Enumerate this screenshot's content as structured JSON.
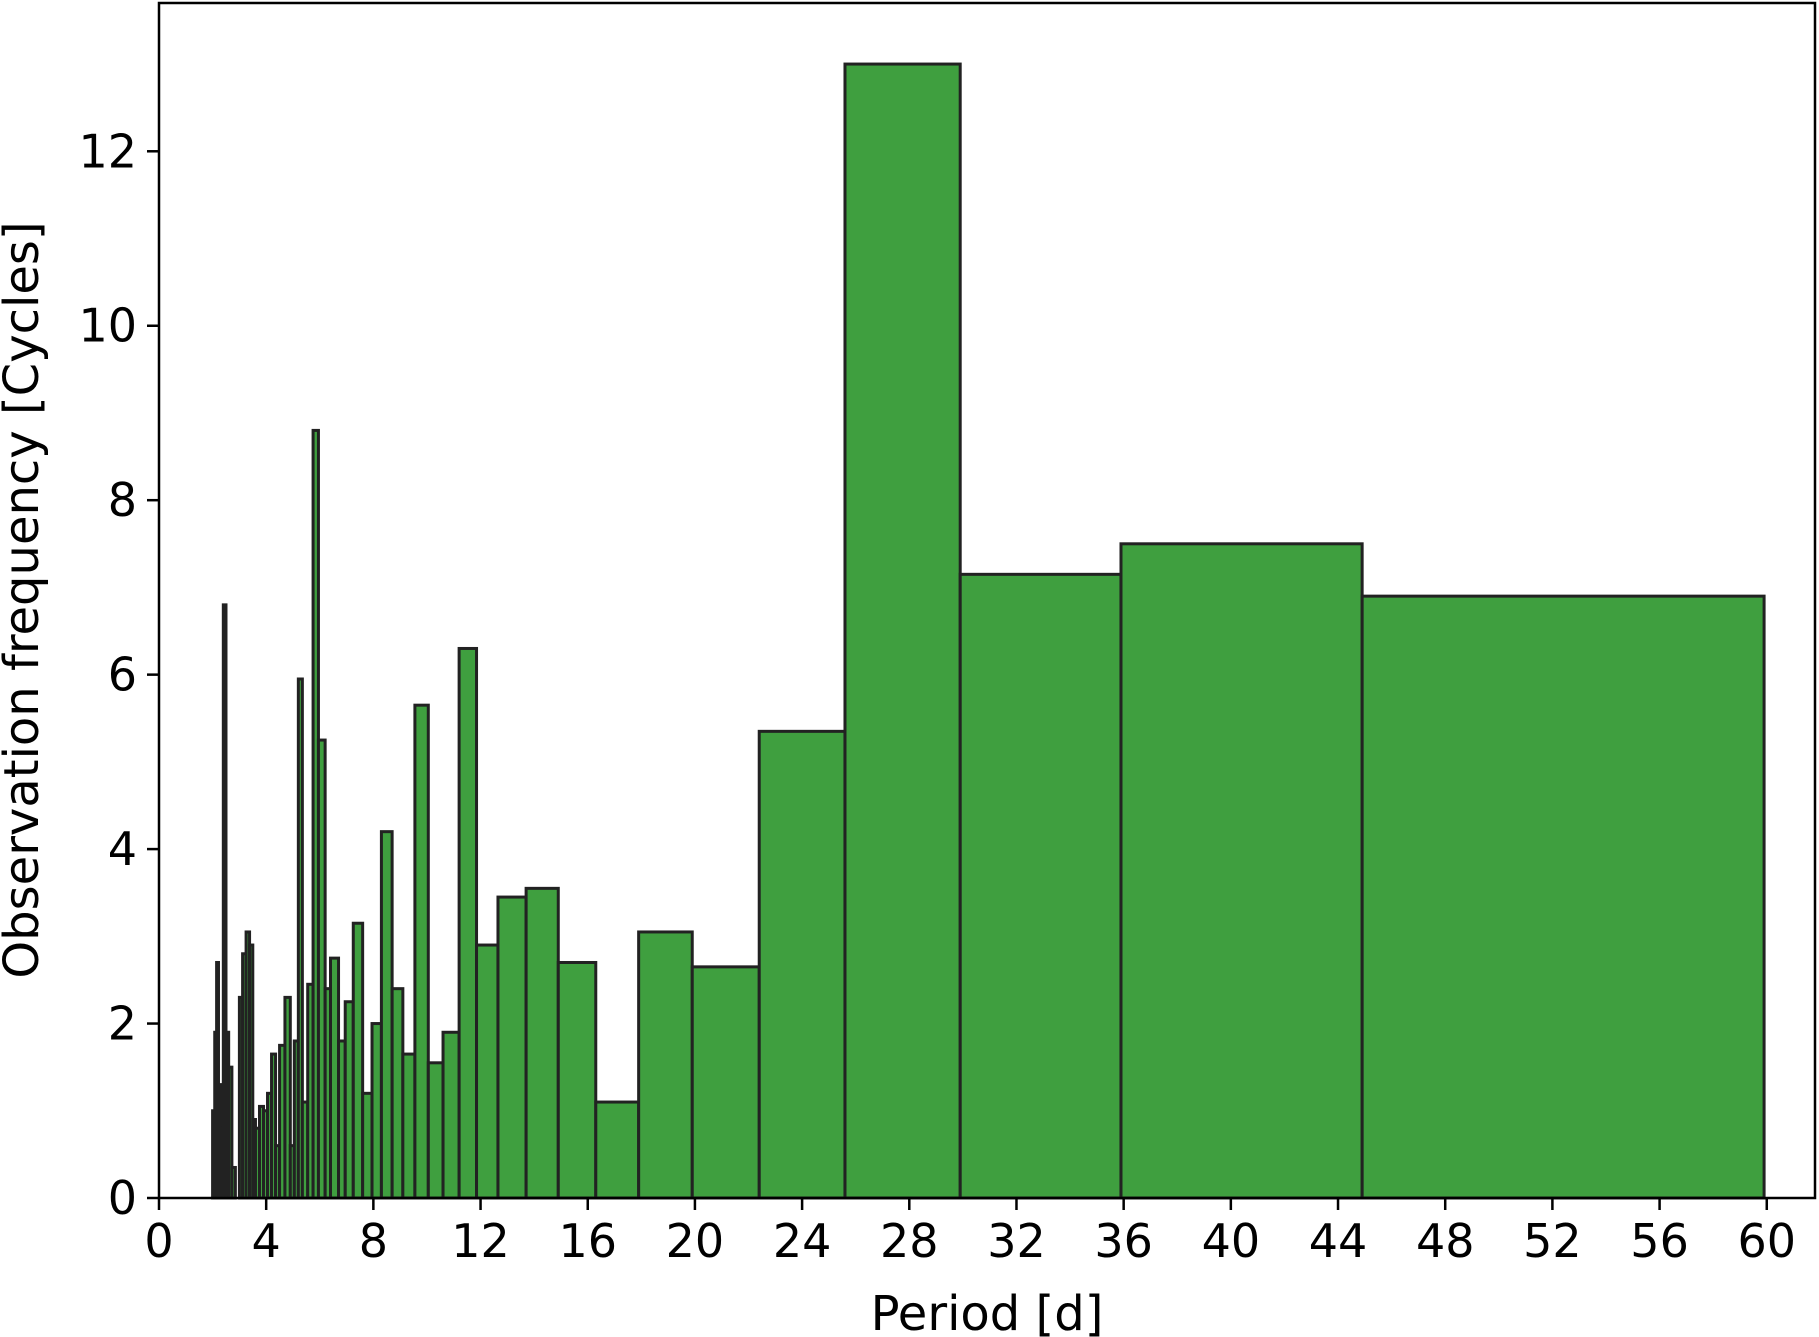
{
  "chart_data": {
    "type": "bar",
    "xlabel": "Period [d]",
    "ylabel": "Observation frequency [Cycles]",
    "xlim": [
      0,
      61.8
    ],
    "ylim": [
      0,
      13.7
    ],
    "xticks": [
      "0",
      "4",
      "8",
      "12",
      "16",
      "20",
      "24",
      "28",
      "32",
      "36",
      "40",
      "44",
      "48",
      "52",
      "56",
      "60"
    ],
    "yticks": [
      "0",
      "2",
      "4",
      "6",
      "8",
      "10",
      "12"
    ],
    "grid": false,
    "colors": {
      "fill": "#3f9f3f",
      "edge": "#222222"
    },
    "bins": [
      {
        "x0": 2.0,
        "x1": 2.08,
        "value": 1.0
      },
      {
        "x0": 2.08,
        "x1": 2.15,
        "value": 1.9
      },
      {
        "x0": 2.15,
        "x1": 2.22,
        "value": 2.7
      },
      {
        "x0": 2.22,
        "x1": 2.3,
        "value": 1.3
      },
      {
        "x0": 2.3,
        "x1": 2.4,
        "value": 0.8
      },
      {
        "x0": 2.4,
        "x1": 2.5,
        "value": 6.8
      },
      {
        "x0": 2.5,
        "x1": 2.6,
        "value": 1.9
      },
      {
        "x0": 2.6,
        "x1": 2.72,
        "value": 1.5
      },
      {
        "x0": 2.72,
        "x1": 2.85,
        "value": 0.35
      },
      {
        "x0": 3.0,
        "x1": 3.12,
        "value": 2.3
      },
      {
        "x0": 3.12,
        "x1": 3.25,
        "value": 2.8
      },
      {
        "x0": 3.25,
        "x1": 3.38,
        "value": 3.05
      },
      {
        "x0": 3.38,
        "x1": 3.5,
        "value": 2.9
      },
      {
        "x0": 3.5,
        "x1": 3.6,
        "value": 0.9
      },
      {
        "x0": 3.6,
        "x1": 3.75,
        "value": 0.8
      },
      {
        "x0": 3.75,
        "x1": 3.9,
        "value": 1.05
      },
      {
        "x0": 3.9,
        "x1": 4.05,
        "value": 1.0
      },
      {
        "x0": 4.05,
        "x1": 4.2,
        "value": 1.2
      },
      {
        "x0": 4.2,
        "x1": 4.35,
        "value": 1.65
      },
      {
        "x0": 4.35,
        "x1": 4.5,
        "value": 0.6
      },
      {
        "x0": 4.5,
        "x1": 4.7,
        "value": 1.75
      },
      {
        "x0": 4.7,
        "x1": 4.9,
        "value": 2.3
      },
      {
        "x0": 4.9,
        "x1": 5.05,
        "value": 0.6
      },
      {
        "x0": 5.05,
        "x1": 5.2,
        "value": 1.8
      },
      {
        "x0": 5.2,
        "x1": 5.35,
        "value": 5.95
      },
      {
        "x0": 5.35,
        "x1": 5.55,
        "value": 1.1
      },
      {
        "x0": 5.55,
        "x1": 5.75,
        "value": 2.45
      },
      {
        "x0": 5.75,
        "x1": 5.95,
        "value": 8.8
      },
      {
        "x0": 5.95,
        "x1": 6.2,
        "value": 5.25
      },
      {
        "x0": 6.2,
        "x1": 6.4,
        "value": 2.4
      },
      {
        "x0": 6.4,
        "x1": 6.7,
        "value": 2.75
      },
      {
        "x0": 6.7,
        "x1": 6.95,
        "value": 1.8
      },
      {
        "x0": 6.95,
        "x1": 7.25,
        "value": 2.25
      },
      {
        "x0": 7.25,
        "x1": 7.6,
        "value": 3.15
      },
      {
        "x0": 7.6,
        "x1": 7.95,
        "value": 1.2
      },
      {
        "x0": 7.95,
        "x1": 8.3,
        "value": 2.0
      },
      {
        "x0": 8.3,
        "x1": 8.7,
        "value": 4.2
      },
      {
        "x0": 8.7,
        "x1": 9.1,
        "value": 2.4
      },
      {
        "x0": 9.1,
        "x1": 9.55,
        "value": 1.65
      },
      {
        "x0": 9.55,
        "x1": 10.05,
        "value": 5.65
      },
      {
        "x0": 10.05,
        "x1": 10.6,
        "value": 1.55
      },
      {
        "x0": 10.6,
        "x1": 11.2,
        "value": 1.9
      },
      {
        "x0": 11.2,
        "x1": 11.85,
        "value": 6.3
      },
      {
        "x0": 11.85,
        "x1": 12.65,
        "value": 2.9
      },
      {
        "x0": 12.65,
        "x1": 13.7,
        "value": 3.45
      },
      {
        "x0": 13.7,
        "x1": 14.9,
        "value": 3.55
      },
      {
        "x0": 14.9,
        "x1": 16.3,
        "value": 2.7
      },
      {
        "x0": 16.3,
        "x1": 17.9,
        "value": 1.1
      },
      {
        "x0": 17.9,
        "x1": 19.9,
        "value": 3.05
      },
      {
        "x0": 19.9,
        "x1": 22.4,
        "value": 2.65
      },
      {
        "x0": 22.4,
        "x1": 25.6,
        "value": 5.35
      },
      {
        "x0": 25.6,
        "x1": 29.9,
        "value": 13.0
      },
      {
        "x0": 29.9,
        "x1": 35.9,
        "value": 7.15
      },
      {
        "x0": 35.9,
        "x1": 44.9,
        "value": 7.5
      },
      {
        "x0": 44.9,
        "x1": 59.9,
        "value": 6.9
      }
    ]
  }
}
